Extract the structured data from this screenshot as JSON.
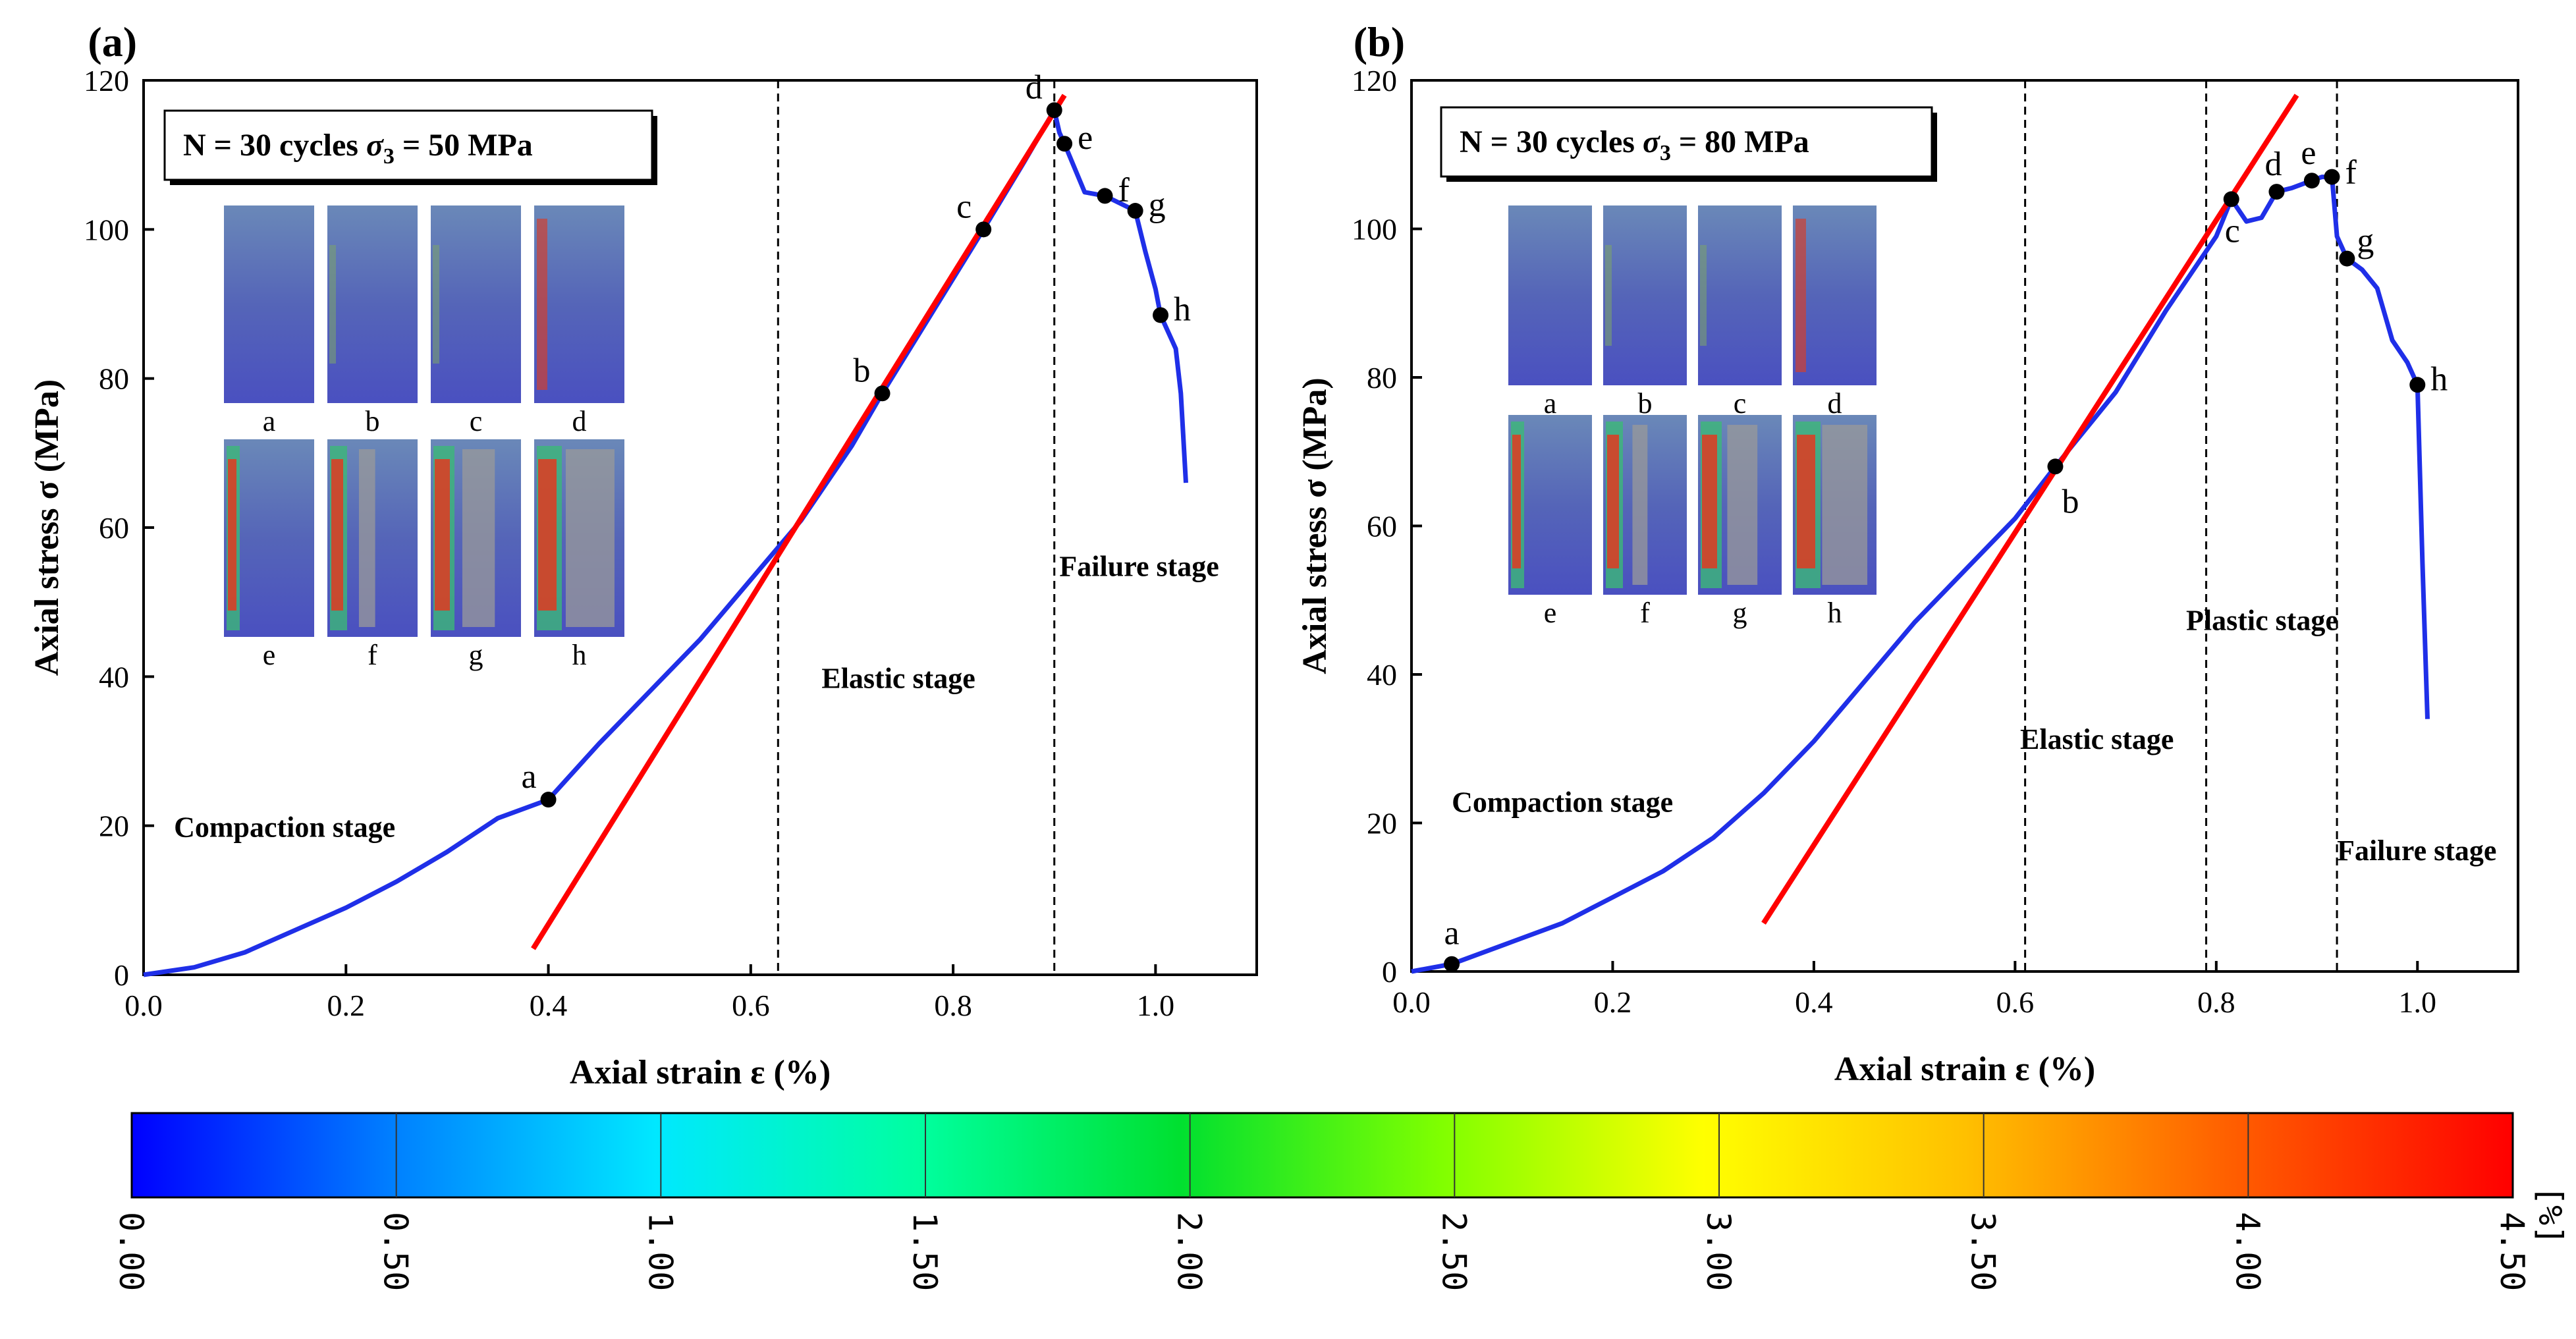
{
  "chart_data": [
    {
      "type": "line",
      "panel_label": "(a)",
      "title": "",
      "xlabel": "Axial strain ε (%)",
      "ylabel": "Axial stress σ (MPa)",
      "xlim": [
        0,
        1.1
      ],
      "ylim": [
        0,
        120
      ],
      "xticks": [
        0.0,
        0.2,
        0.4,
        0.6,
        0.8,
        1.0
      ],
      "xtick_labels": [
        "0.0",
        "0.2",
        "0.4",
        "0.6",
        "0.8",
        "1.0"
      ],
      "yticks": [
        0,
        20,
        40,
        60,
        80,
        100,
        120
      ],
      "ytick_labels": [
        "0",
        "20",
        "40",
        "60",
        "80",
        "100",
        "120"
      ],
      "annotation": {
        "prefix": "N = 30 cycles",
        "sigma": "σ",
        "subscript": "3",
        "suffix": " = 50 MPa"
      },
      "series": [
        {
          "name": "stress-strain curve",
          "color": "#1f2fe8",
          "x": [
            0.0,
            0.05,
            0.1,
            0.15,
            0.2,
            0.25,
            0.3,
            0.35,
            0.4,
            0.45,
            0.5,
            0.55,
            0.6,
            0.65,
            0.7,
            0.73,
            0.78,
            0.83,
            0.87,
            0.9,
            0.905,
            0.91,
            0.93,
            0.95,
            0.98,
            0.99,
            1.0,
            1.005,
            1.02,
            1.025,
            1.03
          ],
          "y": [
            0,
            1,
            3,
            6,
            9,
            12.5,
            16.5,
            21,
            23.5,
            31,
            38,
            45,
            53,
            61,
            71,
            78,
            89,
            100,
            109,
            116,
            113,
            111.5,
            105,
            104.5,
            102.5,
            97,
            92,
            88.5,
            84,
            78,
            66
          ]
        },
        {
          "name": "elastic fit",
          "color": "#ff0000",
          "x": [
            0.385,
            0.91
          ],
          "y": [
            3.5,
            118
          ]
        }
      ],
      "points": [
        {
          "label": "a",
          "x": 0.4,
          "y": 23.5
        },
        {
          "label": "b",
          "x": 0.73,
          "y": 78
        },
        {
          "label": "c",
          "x": 0.83,
          "y": 100
        },
        {
          "label": "d",
          "x": 0.9,
          "y": 116
        },
        {
          "label": "e",
          "x": 0.91,
          "y": 111.5
        },
        {
          "label": "f",
          "x": 0.95,
          "y": 104.5
        },
        {
          "label": "g",
          "x": 0.98,
          "y": 102.5
        },
        {
          "label": "h",
          "x": 1.005,
          "y": 88.5
        }
      ],
      "vlines": [
        0.627,
        0.9
      ],
      "stages": [
        {
          "label": "Compaction stage",
          "x": 0.03,
          "y": 18.5
        },
        {
          "label": "Elastic stage",
          "x": 0.67,
          "y": 38.5
        },
        {
          "label": "Failure stage",
          "x": 0.905,
          "y": 53.5
        }
      ],
      "inset_labels": [
        "a",
        "b",
        "c",
        "d",
        "e",
        "f",
        "g",
        "h"
      ]
    },
    {
      "type": "line",
      "panel_label": "(b)",
      "title": "",
      "xlabel": "Axial strain ε (%)",
      "ylabel": "Axial stress σ (MPa)",
      "xlim": [
        0,
        1.1
      ],
      "ylim": [
        0,
        120
      ],
      "xticks": [
        0.0,
        0.2,
        0.4,
        0.6,
        0.8,
        1.0
      ],
      "xtick_labels": [
        "0.0",
        "0.2",
        "0.4",
        "0.6",
        "0.8",
        "1.0"
      ],
      "yticks": [
        0,
        20,
        40,
        60,
        80,
        100,
        120
      ],
      "ytick_labels": [
        "0",
        "20",
        "40",
        "60",
        "80",
        "100",
        "120"
      ],
      "annotation": {
        "prefix": "N = 30 cycles",
        "sigma": "σ",
        "subscript": "3",
        "suffix": " = 80 MPa"
      },
      "series": [
        {
          "name": "stress-strain curve",
          "color": "#1f2fe8",
          "x": [
            0.0,
            0.04,
            0.1,
            0.15,
            0.2,
            0.25,
            0.3,
            0.35,
            0.4,
            0.45,
            0.5,
            0.55,
            0.6,
            0.64,
            0.7,
            0.75,
            0.8,
            0.815,
            0.83,
            0.845,
            0.86,
            0.875,
            0.895,
            0.905,
            0.915,
            0.92,
            0.93,
            0.945,
            0.96,
            0.975,
            0.99,
            1.0,
            1.005,
            1.01
          ],
          "y": [
            0,
            1,
            4,
            6.5,
            10,
            13.5,
            18,
            24,
            31,
            39,
            47,
            54,
            61,
            68,
            78,
            89,
            99,
            104,
            101,
            101.5,
            105,
            105.5,
            106.5,
            107,
            107,
            99,
            96,
            94.5,
            92,
            85,
            82,
            79,
            55,
            34
          ]
        },
        {
          "name": "elastic fit",
          "color": "#ff0000",
          "x": [
            0.35,
            0.88
          ],
          "y": [
            6.5,
            118
          ]
        }
      ],
      "points": [
        {
          "label": "a",
          "x": 0.04,
          "y": 1
        },
        {
          "label": "b",
          "x": 0.64,
          "y": 68
        },
        {
          "label": "c",
          "x": 0.815,
          "y": 104
        },
        {
          "label": "d",
          "x": 0.86,
          "y": 105
        },
        {
          "label": "e",
          "x": 0.895,
          "y": 106.5
        },
        {
          "label": "f",
          "x": 0.915,
          "y": 107
        },
        {
          "label": "g",
          "x": 0.93,
          "y": 96
        },
        {
          "label": "h",
          "x": 1.0,
          "y": 79
        }
      ],
      "vlines": [
        0.61,
        0.79,
        0.92
      ],
      "stages": [
        {
          "label": "Compaction stage",
          "x": 0.04,
          "y": 21.5
        },
        {
          "label": "Elastic stage",
          "x": 0.605,
          "y": 30
        },
        {
          "label": "Plastic stage",
          "x": 0.77,
          "y": 46
        },
        {
          "label": "Failure stage",
          "x": 0.92,
          "y": 15
        }
      ],
      "inset_labels": [
        "a",
        "b",
        "c",
        "d",
        "e",
        "f",
        "g",
        "h"
      ]
    }
  ],
  "colorbar": {
    "ticks": [
      "0.00",
      "0.50",
      "1.00",
      "1.50",
      "2.00",
      "2.50",
      "3.00",
      "3.50",
      "4.00",
      "4.50"
    ],
    "unit": "[%]",
    "colors": [
      "#0000ff",
      "#00a0ff",
      "#00ffff",
      "#00ff80",
      "#00e000",
      "#a0ff00",
      "#ffff00",
      "#ffb000",
      "#ff5000",
      "#ff0000"
    ]
  }
}
